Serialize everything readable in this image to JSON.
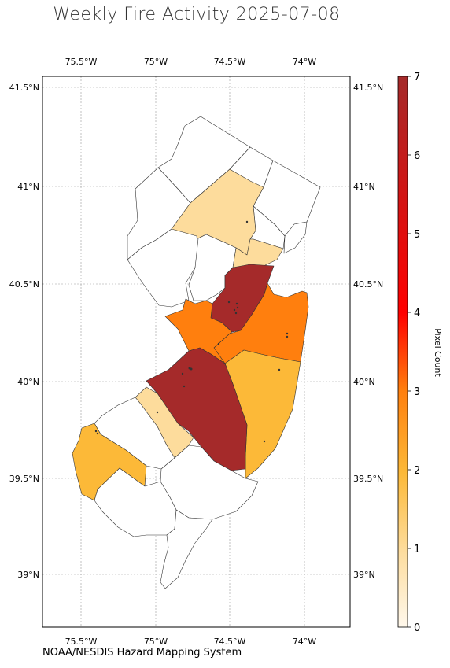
{
  "title": "Weekly Fire Activity 2025-07-08",
  "source": "NOAA/NESDIS Hazard Mapping System",
  "lon_ticks": [
    "75.5°W",
    "75°W",
    "74.5°W",
    "74°W"
  ],
  "lat_ticks": [
    "41.5°N",
    "41°N",
    "40.5°N",
    "40°N",
    "39.5°N",
    "39°N"
  ],
  "colorbar": {
    "label": "Pixel Count",
    "min": 0,
    "max": 7,
    "ticks": [
      "0",
      "1",
      "2",
      "3",
      "4",
      "5",
      "6",
      "7"
    ],
    "colors": [
      "#fff8ec",
      "#fddc9c",
      "#fcb938",
      "#ff7f0e",
      "#ff0000",
      "#b22222"
    ]
  },
  "region_colors": {
    "level1": "#fddc9c",
    "level2": "#fcb938",
    "level3": "#ff7f0e",
    "level7": "#a52a2a",
    "none": "#ffffff"
  }
}
